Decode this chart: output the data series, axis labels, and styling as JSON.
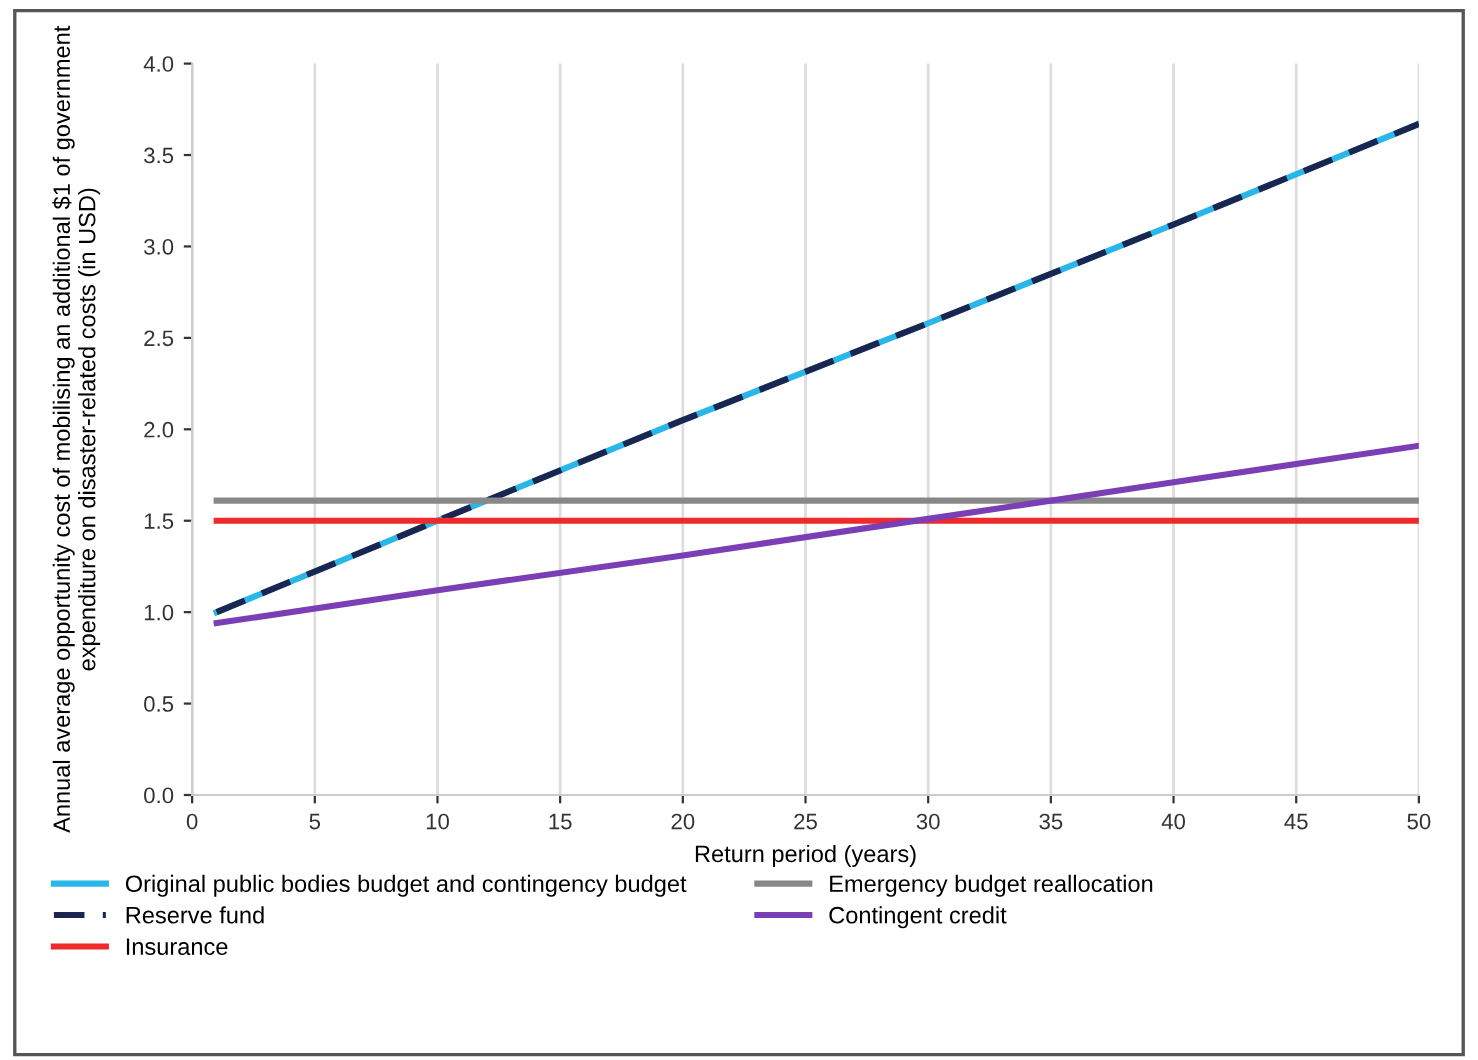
{
  "chart_data": {
    "type": "line",
    "xlabel": "Return period (years)",
    "ylabel": "Annual average opportunity cost of mobilising an additional $1 of government expenditure on disaster-related costs (in USD)",
    "x": [
      1,
      10,
      20,
      30,
      40,
      50
    ],
    "series": [
      {
        "name": "Original public bodies budget and contingency budget",
        "color": "#29b6e8",
        "values": [
          1.0,
          1.5,
          2.05,
          2.58,
          3.12,
          3.67
        ]
      },
      {
        "name": "Reserve fund",
        "color": "#1a2550",
        "line_style": "dashed",
        "values": [
          1.0,
          1.5,
          2.05,
          2.58,
          3.12,
          3.67
        ]
      },
      {
        "name": "Insurance",
        "color": "#ee2a2a",
        "values": [
          1.5,
          1.5,
          1.5,
          1.5,
          1.5,
          1.5
        ]
      },
      {
        "name": "Emergency budget reallocation",
        "color": "#888888",
        "values": [
          1.61,
          1.61,
          1.61,
          1.61,
          1.61,
          1.61
        ]
      },
      {
        "name": "Contingent credit",
        "color": "#7a3fb5",
        "values": [
          0.94,
          1.12,
          1.31,
          1.51,
          1.71,
          1.91
        ]
      }
    ],
    "xlim": [
      0,
      50
    ],
    "xticks": [
      0,
      5,
      10,
      15,
      20,
      25,
      30,
      35,
      40,
      45,
      50
    ],
    "ylim": [
      0,
      4
    ],
    "yticks": [
      {
        "value": 0,
        "label": "0.0"
      },
      {
        "value": 0.5,
        "label": "0.5"
      },
      {
        "value": 1,
        "label": "1.0"
      },
      {
        "value": 1.5,
        "label": "1.5"
      },
      {
        "value": 2,
        "label": "2.0"
      },
      {
        "value": 2.5,
        "label": "2.5"
      },
      {
        "value": 3,
        "label": "3.0"
      },
      {
        "value": 3.5,
        "label": "3.5"
      },
      {
        "value": 4,
        "label": "4.0"
      }
    ],
    "grid": "x",
    "legend": "bottom",
    "marker": "none",
    "line_style": "solid"
  }
}
